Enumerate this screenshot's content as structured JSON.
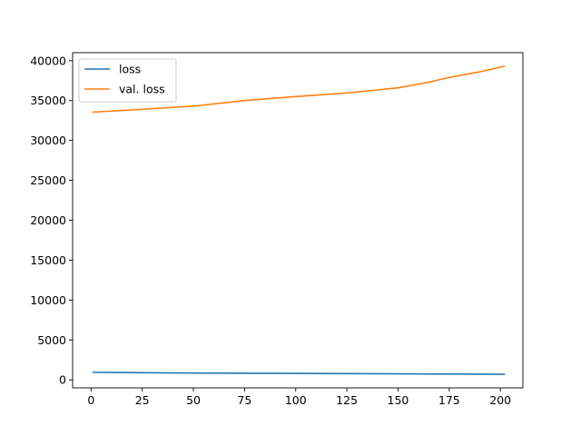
{
  "chart_data": {
    "type": "line",
    "title": "",
    "xlabel": "",
    "ylabel": "",
    "xlim": [
      -9,
      211
    ],
    "ylim": [
      -1000,
      41000
    ],
    "xticks": [
      0,
      25,
      50,
      75,
      100,
      125,
      150,
      175,
      200
    ],
    "yticks": [
      0,
      5000,
      10000,
      15000,
      20000,
      25000,
      30000,
      35000,
      40000
    ],
    "grid": false,
    "legend_position": "top-left",
    "series": [
      {
        "name": "loss",
        "color": "#1f77b4",
        "x": [
          1,
          25,
          50,
          75,
          100,
          125,
          150,
          175,
          202
        ],
        "y": [
          950,
          900,
          860,
          830,
          810,
          790,
          760,
          730,
          700
        ]
      },
      {
        "name": "val. loss",
        "color": "#ff7f0e",
        "x": [
          1,
          25,
          50,
          75,
          100,
          125,
          150,
          165,
          175,
          190,
          202
        ],
        "y": [
          33550,
          33900,
          34300,
          35000,
          35500,
          35950,
          36600,
          37300,
          37900,
          38600,
          39300
        ]
      }
    ]
  }
}
